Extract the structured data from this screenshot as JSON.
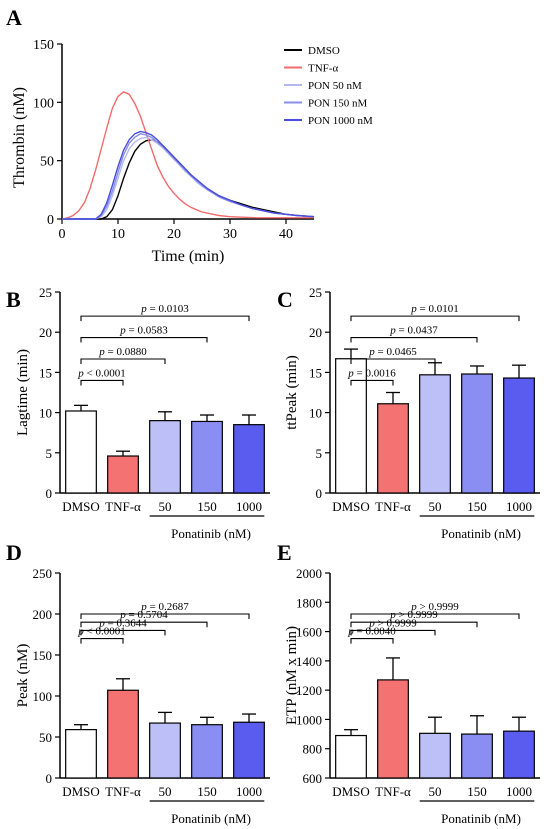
{
  "chart_data": [
    {
      "panel": "A",
      "type": "line",
      "xlabel": "Time (min)",
      "ylabel": "Thrombin (nM)",
      "xlim": [
        0,
        45
      ],
      "ylim": [
        0,
        150
      ],
      "xticks": [
        "0",
        "10",
        "20",
        "30",
        "40"
      ],
      "yticks": [
        "0",
        "50",
        "100",
        "150"
      ],
      "legend_position": "top-right",
      "series": [
        {
          "name": "DMSO",
          "color": "#000000",
          "points": [
            [
              0,
              0
            ],
            [
              7,
              0
            ],
            [
              8,
              2
            ],
            [
              9,
              8
            ],
            [
              10,
              20
            ],
            [
              11,
              35
            ],
            [
              12,
              48
            ],
            [
              13,
              58
            ],
            [
              14,
              64
            ],
            [
              15,
              67
            ],
            [
              16,
              68
            ],
            [
              17,
              66
            ],
            [
              18,
              63
            ],
            [
              19,
              58
            ],
            [
              20,
              53
            ],
            [
              21,
              48
            ],
            [
              22,
              43
            ],
            [
              23,
              38
            ],
            [
              24,
              33
            ],
            [
              25,
              29
            ],
            [
              26,
              26
            ],
            [
              27,
              23
            ],
            [
              28,
              20
            ],
            [
              29,
              18
            ],
            [
              30,
              16
            ],
            [
              32,
              13
            ],
            [
              34,
              10
            ],
            [
              36,
              8
            ],
            [
              38,
              6
            ],
            [
              40,
              4
            ],
            [
              42,
              3
            ],
            [
              45,
              2
            ]
          ]
        },
        {
          "name": "TNF-α",
          "color": "#f26b6b",
          "points": [
            [
              0,
              0
            ],
            [
              1,
              1
            ],
            [
              2,
              3
            ],
            [
              3,
              7
            ],
            [
              4,
              14
            ],
            [
              5,
              26
            ],
            [
              6,
              42
            ],
            [
              7,
              60
            ],
            [
              8,
              78
            ],
            [
              9,
              95
            ],
            [
              10,
              105
            ],
            [
              11,
              109
            ],
            [
              12,
              107
            ],
            [
              13,
              99
            ],
            [
              14,
              88
            ],
            [
              15,
              74
            ],
            [
              16,
              60
            ],
            [
              17,
              46
            ],
            [
              18,
              36
            ],
            [
              19,
              28
            ],
            [
              20,
              22
            ],
            [
              21,
              17
            ],
            [
              22,
              13
            ],
            [
              23,
              10
            ],
            [
              24,
              8
            ],
            [
              25,
              6
            ],
            [
              26,
              5
            ],
            [
              27,
              4
            ],
            [
              28,
              3
            ],
            [
              30,
              2
            ],
            [
              35,
              1
            ],
            [
              45,
              1
            ]
          ]
        },
        {
          "name": "PON 50 nM",
          "color": "#b3b8ee",
          "points": [
            [
              0,
              0
            ],
            [
              6,
              0
            ],
            [
              7,
              2
            ],
            [
              8,
              8
            ],
            [
              9,
              20
            ],
            [
              10,
              35
            ],
            [
              11,
              50
            ],
            [
              12,
              60
            ],
            [
              13,
              66
            ],
            [
              14,
              69
            ],
            [
              15,
              70
            ],
            [
              16,
              68
            ],
            [
              17,
              65
            ],
            [
              18,
              61
            ],
            [
              19,
              56
            ],
            [
              20,
              51
            ],
            [
              21,
              46
            ],
            [
              22,
              41
            ],
            [
              23,
              37
            ],
            [
              24,
              32
            ],
            [
              25,
              28
            ],
            [
              26,
              25
            ],
            [
              27,
              22
            ],
            [
              28,
              19
            ],
            [
              29,
              17
            ],
            [
              30,
              15
            ],
            [
              32,
              12
            ],
            [
              34,
              9
            ],
            [
              36,
              7
            ],
            [
              38,
              5
            ],
            [
              40,
              4
            ],
            [
              42,
              3
            ],
            [
              45,
              2
            ]
          ]
        },
        {
          "name": "PON 150 nM",
          "color": "#8a8ee8",
          "points": [
            [
              0,
              0
            ],
            [
              6,
              0
            ],
            [
              7,
              3
            ],
            [
              8,
              11
            ],
            [
              9,
              24
            ],
            [
              10,
              40
            ],
            [
              11,
              55
            ],
            [
              12,
              65
            ],
            [
              13,
              70
            ],
            [
              14,
              73
            ],
            [
              15,
              72
            ],
            [
              16,
              70
            ],
            [
              17,
              66
            ],
            [
              18,
              62
            ],
            [
              19,
              57
            ],
            [
              20,
              52
            ],
            [
              21,
              47
            ],
            [
              22,
              42
            ],
            [
              23,
              37
            ],
            [
              24,
              33
            ],
            [
              25,
              29
            ],
            [
              26,
              25
            ],
            [
              27,
              22
            ],
            [
              28,
              19
            ],
            [
              29,
              17
            ],
            [
              30,
              15
            ],
            [
              32,
              12
            ],
            [
              34,
              9
            ],
            [
              36,
              7
            ],
            [
              38,
              5
            ],
            [
              40,
              4
            ],
            [
              42,
              3
            ],
            [
              45,
              2
            ]
          ]
        },
        {
          "name": "PON 1000 nM",
          "color": "#4a4ee0",
          "points": [
            [
              0,
              0
            ],
            [
              6,
              0
            ],
            [
              7,
              4
            ],
            [
              8,
              14
            ],
            [
              9,
              29
            ],
            [
              10,
              45
            ],
            [
              11,
              59
            ],
            [
              12,
              68
            ],
            [
              13,
              73
            ],
            [
              14,
              75
            ],
            [
              15,
              74
            ],
            [
              16,
              72
            ],
            [
              17,
              68
            ],
            [
              18,
              63
            ],
            [
              19,
              58
            ],
            [
              20,
              53
            ],
            [
              21,
              48
            ],
            [
              22,
              43
            ],
            [
              23,
              38
            ],
            [
              24,
              34
            ],
            [
              25,
              30
            ],
            [
              26,
              26
            ],
            [
              27,
              23
            ],
            [
              28,
              20
            ],
            [
              29,
              18
            ],
            [
              30,
              16
            ],
            [
              32,
              12
            ],
            [
              34,
              9
            ],
            [
              36,
              7
            ],
            [
              38,
              5
            ],
            [
              40,
              4
            ],
            [
              42,
              3
            ],
            [
              45,
              2
            ]
          ]
        }
      ]
    },
    {
      "panel": "B",
      "type": "bar",
      "ylabel": "Lagtime (min)",
      "ylim": [
        0,
        25
      ],
      "yticks": [
        "0",
        "5",
        "10",
        "15",
        "20",
        "25"
      ],
      "categories": [
        "DMSO",
        "TNF-α",
        "50",
        "150",
        "1000"
      ],
      "values": [
        10.2,
        4.6,
        9.0,
        8.9,
        8.5
      ],
      "errors": [
        0.7,
        0.6,
        1.1,
        0.8,
        1.2
      ],
      "group_label": "Ponatinib (nM)",
      "pvalues": [
        "p < 0.0001",
        "p = 0.0880",
        "p = 0.0583",
        "p = 0.0103"
      ]
    },
    {
      "panel": "C",
      "type": "bar",
      "ylabel": "ttPeak (min)",
      "ylim": [
        0,
        25
      ],
      "yticks": [
        "0",
        "5",
        "10",
        "15",
        "20",
        "25"
      ],
      "categories": [
        "DMSO",
        "TNF-α",
        "50",
        "150",
        "1000"
      ],
      "values": [
        16.7,
        11.1,
        14.7,
        14.8,
        14.3
      ],
      "errors": [
        1.2,
        1.4,
        1.5,
        1.0,
        1.6
      ],
      "group_label": "Ponatinib (nM)",
      "pvalues": [
        "p = 0.0016",
        "p = 0.0465",
        "p = 0.0437",
        "p = 0.0101"
      ]
    },
    {
      "panel": "D",
      "type": "bar",
      "ylabel": "Peak (nM)",
      "ylim": [
        0,
        250
      ],
      "yticks": [
        "0",
        "50",
        "100",
        "150",
        "200",
        "250"
      ],
      "categories": [
        "DMSO",
        "TNF-α",
        "50",
        "150",
        "1000"
      ],
      "values": [
        59,
        107,
        67,
        65,
        68
      ],
      "errors": [
        6,
        14,
        13,
        9,
        10
      ],
      "group_label": "Ponatinib (nM)",
      "pvalues": [
        "p < 0.0001",
        "p = 0.3644",
        "p = 0.5704",
        "p = 0.2687"
      ]
    },
    {
      "panel": "E",
      "type": "bar",
      "ylabel": "ETP (nM x min)",
      "ylim": [
        600,
        2000
      ],
      "yticks": [
        "600",
        "800",
        "1000",
        "1200",
        "1400",
        "1600",
        "1800",
        "2000"
      ],
      "categories": [
        "DMSO",
        "TNF-α",
        "50",
        "150",
        "1000"
      ],
      "values": [
        890,
        1270,
        905,
        900,
        920
      ],
      "errors": [
        40,
        150,
        110,
        125,
        95
      ],
      "group_label": "Ponatinib (nM)",
      "pvalues": [
        "p = 0.0040",
        "p > 0.9999",
        "p > 0.9999",
        "p > 0.9999"
      ]
    }
  ],
  "bar_colors": [
    "#ffffff",
    "#f47272",
    "#bcc0f6",
    "#8a8ef2",
    "#5a5cf0"
  ]
}
